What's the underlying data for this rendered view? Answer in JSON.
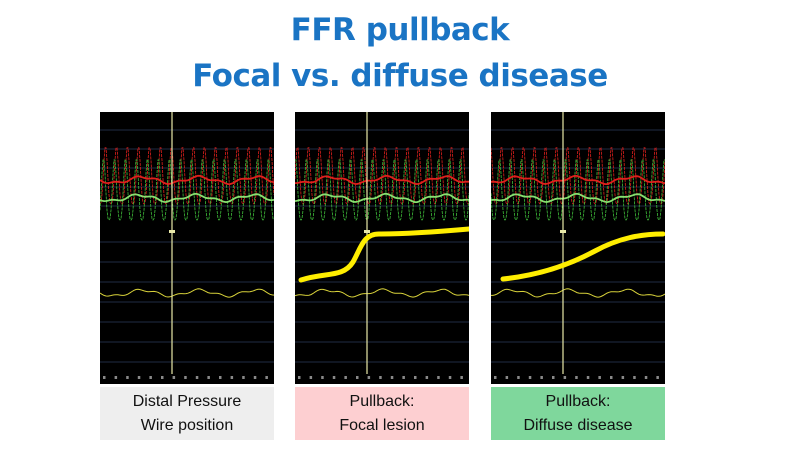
{
  "title": {
    "line1": "FFR pullback",
    "line2": "Focal vs. diffuse disease"
  },
  "panels": [
    {
      "caption_line1": "Distal Pressure",
      "caption_line2": "Wire position",
      "caption_bg": "#eeeeee",
      "overlay": "none"
    },
    {
      "caption_line1": "Pullback:",
      "caption_line2": "Focal lesion",
      "caption_bg": "#fdcfd1",
      "overlay": "step"
    },
    {
      "caption_line1": "Pullback:",
      "caption_line2": "Diffuse disease",
      "caption_bg": "#7fd79c",
      "overlay": "gradual"
    }
  ],
  "colors": {
    "title": "#1a74c4",
    "aortic_trace": "#e0201c",
    "distal_trace": "#3fbf3a",
    "ratio_trace": "#d8d23a",
    "overlay_curve": "#ffee00",
    "marker_line": "#e8e8a8"
  }
}
